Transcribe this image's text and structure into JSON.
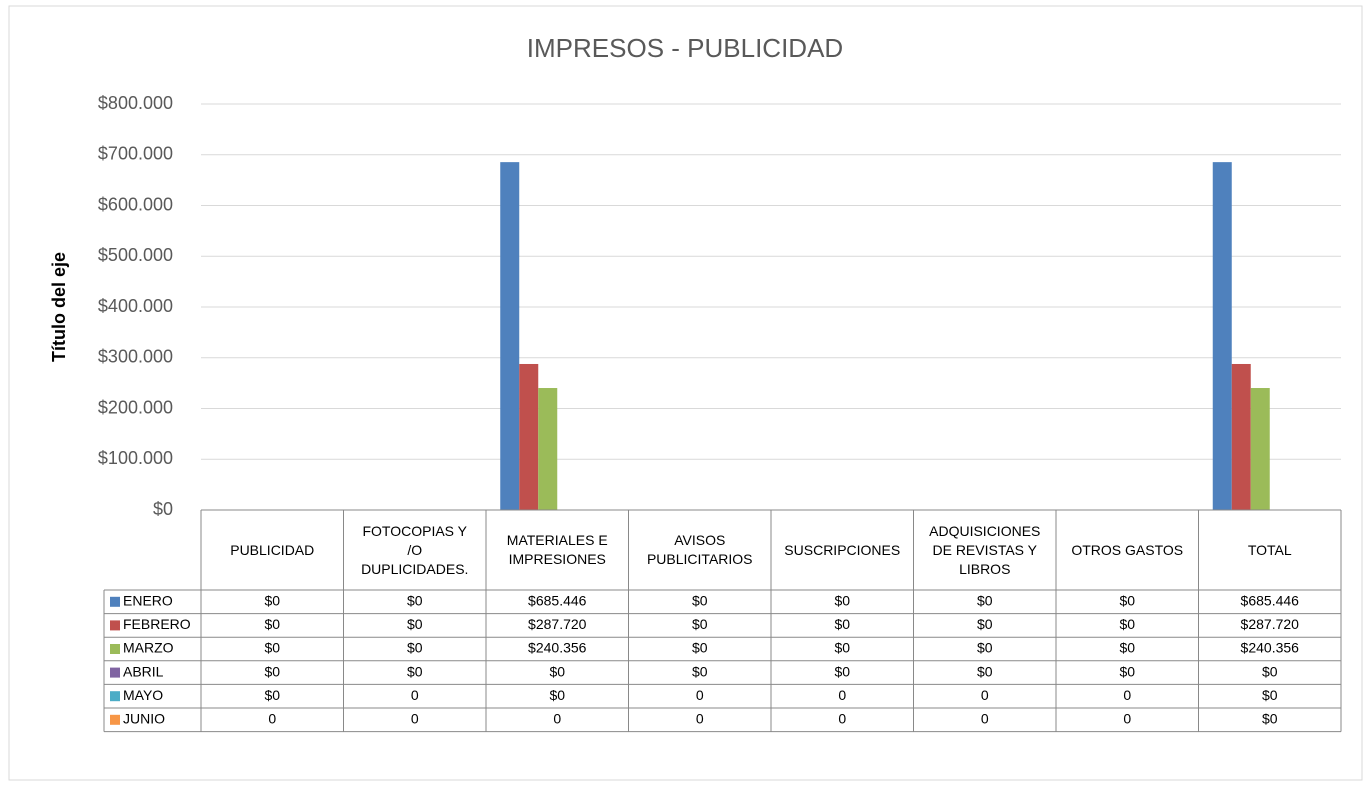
{
  "chart_data": {
    "type": "bar",
    "title": "IMPRESOS - PUBLICIDAD",
    "y_axis_label": "Título del eje",
    "categories": [
      "PUBLICIDAD",
      "FOTOCOPIAS Y /O DUPLICIDADES.",
      "MATERIALES E IMPRESIONES",
      "AVISOS PUBLICITARIOS",
      "SUSCRIPCIONES",
      "ADQUISICIONES DE REVISTAS Y LIBROS",
      "OTROS GASTOS",
      "TOTAL"
    ],
    "series": [
      {
        "name": "ENERO",
        "color": "#4f81bd",
        "values": [
          0,
          0,
          685446,
          0,
          0,
          0,
          0,
          685446
        ],
        "value_labels": [
          "$0",
          "$0",
          "$685.446",
          "$0",
          "$0",
          "$0",
          "$0",
          "$685.446"
        ]
      },
      {
        "name": "FEBRERO",
        "color": "#c0504d",
        "values": [
          0,
          0,
          287720,
          0,
          0,
          0,
          0,
          287720
        ],
        "value_labels": [
          "$0",
          "$0",
          "$287.720",
          "$0",
          "$0",
          "$0",
          "$0",
          "$287.720"
        ]
      },
      {
        "name": "MARZO",
        "color": "#9bbb59",
        "values": [
          0,
          0,
          240356,
          0,
          0,
          0,
          0,
          240356
        ],
        "value_labels": [
          "$0",
          "$0",
          "$240.356",
          "$0",
          "$0",
          "$0",
          "$0",
          "$240.356"
        ]
      },
      {
        "name": "ABRIL",
        "color": "#8064a2",
        "values": [
          0,
          0,
          0,
          0,
          0,
          0,
          0,
          0
        ],
        "value_labels": [
          "$0",
          "$0",
          "$0",
          "$0",
          "$0",
          "$0",
          "$0",
          "$0"
        ]
      },
      {
        "name": "MAYO",
        "color": "#4bacc6",
        "values": [
          0,
          0,
          0,
          0,
          0,
          0,
          0,
          0
        ],
        "value_labels": [
          "$0",
          "0",
          "$0",
          "0",
          "0",
          "0",
          "0",
          "$0"
        ]
      },
      {
        "name": "JUNIO",
        "color": "#f79646",
        "values": [
          0,
          0,
          0,
          0,
          0,
          0,
          0,
          0
        ],
        "value_labels": [
          "0",
          "0",
          "0",
          "0",
          "0",
          "0",
          "0",
          "$0"
        ]
      }
    ],
    "ylim": [
      0,
      800000
    ],
    "yticks": [
      {
        "value": 0,
        "label": "$0"
      },
      {
        "value": 100000,
        "label": "$100.000"
      },
      {
        "value": 200000,
        "label": "$200.000"
      },
      {
        "value": 300000,
        "label": "$300.000"
      },
      {
        "value": 400000,
        "label": "$400.000"
      },
      {
        "value": 500000,
        "label": "$500.000"
      },
      {
        "value": 600000,
        "label": "$600.000"
      },
      {
        "value": 700000,
        "label": "$700.000"
      },
      {
        "value": 800000,
        "label": "$800.000"
      }
    ],
    "grid": true
  }
}
